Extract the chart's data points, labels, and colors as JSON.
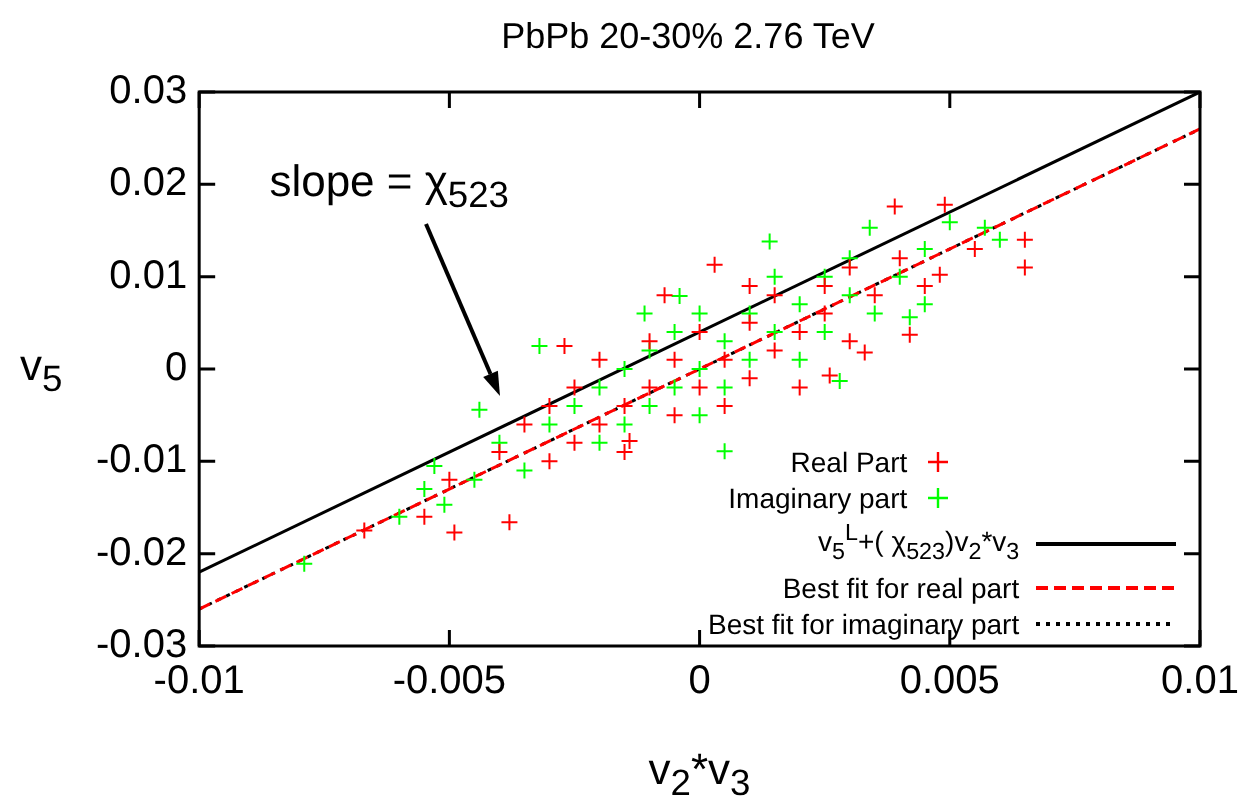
{
  "chart_data": {
    "type": "scatter",
    "title": "PbPb 20-30% 2.76 TeV",
    "xlabel": "v$_{2}$*v$_{3}$",
    "ylabel": "v$_{5}$",
    "xlim": [
      -0.01,
      0.01
    ],
    "xticks": [
      -0.01,
      -0.005,
      0,
      0.005,
      0.01
    ],
    "ylim": [
      -0.03,
      0.03
    ],
    "yticks": [
      -0.03,
      -0.02,
      -0.01,
      0,
      0.01,
      0.02,
      0.03
    ],
    "grid": false,
    "legend": "bottom right",
    "annotations": [
      "slope = χ$_{523}$"
    ],
    "series": [
      {
        "name": "Real Part",
        "marker": "cross",
        "color": "#ff0000",
        "x": [
          -0.004,
          -0.0035,
          -0.003,
          -0.003,
          -0.0025,
          -0.0025,
          -0.002,
          -0.002,
          -0.0015,
          -0.0015,
          -0.001,
          -0.001,
          -0.0005,
          -0.0005,
          0,
          0,
          0.0005,
          0.0005,
          0.001,
          0.001,
          0.0015,
          0.0015,
          0.002,
          0.002,
          0.0025,
          0.0025,
          0.003,
          0.003,
          0.0035,
          0.004,
          0.0045,
          -0.005,
          -0.0055,
          0.0055,
          0.001,
          0.0039,
          0.0049,
          0.0065,
          0.0065,
          0.0048,
          0.0042,
          -0.0049,
          -0.0038,
          -0.0067,
          -0.0007,
          0.0003,
          -0.0027,
          0.0033,
          0.0026,
          -0.0014
        ],
        "values": [
          -0.009,
          -0.006,
          -0.01,
          -0.004,
          -0.008,
          -0.002,
          -0.006,
          0.001,
          -0.004,
          -0.009,
          -0.002,
          0.003,
          -0.005,
          0.001,
          -0.002,
          0.004,
          0.001,
          -0.004,
          0.005,
          -0.001,
          0.002,
          0.008,
          0.004,
          -0.002,
          0.009,
          0.006,
          0.003,
          0.011,
          0.008,
          0.012,
          0.009,
          -0.012,
          -0.016,
          0.013,
          0.009,
          0.0176,
          0.0178,
          0.014,
          0.011,
          0.0102,
          0.0037,
          -0.0177,
          -0.0166,
          -0.0175,
          0.008,
          0.0113,
          0.0025,
          0.0018,
          -0.0007,
          -0.0078
        ]
      },
      {
        "name": "Imaginary part",
        "marker": "cross",
        "color": "#00ff00",
        "x": [
          -0.0045,
          -0.004,
          -0.0035,
          -0.003,
          -0.0025,
          -0.002,
          -0.002,
          -0.0015,
          -0.0015,
          -0.001,
          -0.001,
          -0.0005,
          -0.0005,
          0,
          0,
          0,
          0.0005,
          0.0005,
          0.001,
          0.001,
          0.0015,
          0.0015,
          0.002,
          0.002,
          0.0025,
          0.0025,
          0.003,
          0.003,
          0.0035,
          0.004,
          0.0045,
          0.0045,
          -0.0055,
          -0.006,
          0.006,
          -0.0044,
          -0.0079,
          0.005,
          0.0057,
          0.0042,
          0.0028,
          0.0005,
          -0.0004,
          0.0014,
          0.0034,
          -0.0051,
          -0.0053,
          -0.0011,
          -0.0032
        ],
        "values": [
          -0.012,
          -0.008,
          -0.011,
          -0.006,
          -0.004,
          -0.008,
          -0.002,
          0,
          -0.006,
          -0.004,
          0.002,
          -0.002,
          0.004,
          0,
          -0.005,
          0.006,
          0.003,
          -0.002,
          0.006,
          0.001,
          0.004,
          0.01,
          0.007,
          0.001,
          0.01,
          0.004,
          0.008,
          0.012,
          0.006,
          0.01,
          0.013,
          0.007,
          -0.013,
          -0.016,
          0.014,
          -0.0044,
          -0.0211,
          0.0159,
          0.0153,
          0.0056,
          -0.0013,
          -0.0089,
          0.0079,
          0.0138,
          0.0153,
          -0.0147,
          -0.0105,
          0.006,
          0.0025
        ]
      },
      {
        "name": "v$_{5}$$^{L}$+( χ$_{523}$)v$_{2}$*v$_{3}$",
        "type": "line",
        "color": "#000000",
        "line_style": "solid",
        "x": [
          -0.01,
          0.01
        ],
        "values": [
          -0.022,
          0.03
        ]
      },
      {
        "name": "Best fit for real part",
        "type": "line",
        "color": "#ff0000",
        "line_style": "dashed",
        "x": [
          -0.01,
          0.01
        ],
        "values": [
          -0.026,
          0.026
        ]
      },
      {
        "name": "Best fit for imaginary part",
        "type": "line",
        "color": "#000000",
        "line_style": "dotted",
        "x": [
          -0.01,
          0.01
        ],
        "values": [
          -0.026,
          0.026
        ]
      }
    ]
  }
}
